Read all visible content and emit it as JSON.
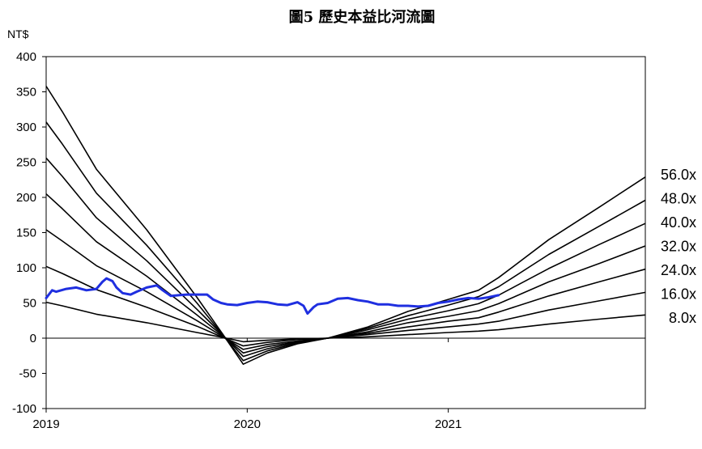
{
  "chart_data": {
    "type": "line",
    "title": "圖5 歷史本益比河流圖",
    "ylabel": "NT$",
    "xlabel": "",
    "ylim": [
      -100,
      400
    ],
    "xlim": [
      2019.0,
      2021.98
    ],
    "y_ticks": [
      -100,
      -50,
      0,
      50,
      100,
      150,
      200,
      250,
      300,
      350,
      400
    ],
    "x_ticks": [
      {
        "label": "2019",
        "value": 2019.0
      },
      {
        "label": "2020",
        "value": 2020.0
      },
      {
        "label": "2021",
        "value": 2021.0
      }
    ],
    "grid": false,
    "legend": "none",
    "colors": {
      "price": "#1f2fe0",
      "bands": "#000000",
      "zero_line": "#000000"
    },
    "series": [
      {
        "name": "56.0x",
        "kind": "pe_band",
        "x": [
          2019.0,
          2019.08,
          2019.25,
          2019.5,
          2019.75,
          2019.88,
          2019.98,
          2020.1,
          2020.25,
          2020.4,
          2020.6,
          2020.8,
          2021.0,
          2021.15,
          2021.25,
          2021.5,
          2021.75,
          2021.98
        ],
        "y": [
          358,
          322,
          240,
          154,
          58,
          5,
          -37,
          -21,
          -8,
          0,
          16,
          38,
          55,
          68,
          86,
          140,
          186,
          229
        ]
      },
      {
        "name": "48.0x",
        "kind": "pe_band",
        "x": [
          2019.0,
          2019.08,
          2019.25,
          2019.5,
          2019.75,
          2019.88,
          2019.98,
          2020.1,
          2020.25,
          2020.4,
          2020.6,
          2020.8,
          2021.0,
          2021.15,
          2021.25,
          2021.5,
          2021.75,
          2021.98
        ],
        "y": [
          307,
          276,
          206,
          132,
          50,
          4,
          -32,
          -18,
          -7,
          0,
          14,
          32,
          47,
          59,
          73,
          119,
          159,
          196
        ]
      },
      {
        "name": "40.0x",
        "kind": "pe_band",
        "x": [
          2019.0,
          2019.08,
          2019.25,
          2019.5,
          2019.75,
          2019.88,
          2019.98,
          2020.1,
          2020.25,
          2020.4,
          2020.6,
          2020.8,
          2021.0,
          2021.15,
          2021.25,
          2021.5,
          2021.75,
          2021.98
        ],
        "y": [
          256,
          230,
          171,
          110,
          41,
          4,
          -26,
          -15,
          -6,
          0,
          12,
          27,
          39,
          49,
          61,
          99,
          133,
          163
        ]
      },
      {
        "name": "32.0x",
        "kind": "pe_band",
        "x": [
          2019.0,
          2019.08,
          2019.25,
          2019.5,
          2019.75,
          2019.88,
          2019.98,
          2020.1,
          2020.25,
          2020.4,
          2020.6,
          2020.8,
          2021.0,
          2021.15,
          2021.25,
          2021.5,
          2021.75,
          2021.98
        ],
        "y": [
          205,
          184,
          137,
          88,
          33,
          3,
          -21,
          -12,
          -5,
          0,
          9,
          22,
          31,
          39,
          49,
          80,
          106,
          131
        ]
      },
      {
        "name": "24.0x",
        "kind": "pe_band",
        "x": [
          2019.0,
          2019.08,
          2019.25,
          2019.5,
          2019.75,
          2019.88,
          2019.98,
          2020.1,
          2020.25,
          2020.4,
          2020.6,
          2020.8,
          2021.0,
          2021.15,
          2021.25,
          2021.5,
          2021.75,
          2021.98
        ],
        "y": [
          154,
          138,
          103,
          66,
          25,
          2,
          -16,
          -9,
          -4,
          0,
          7,
          16,
          24,
          29,
          37,
          60,
          80,
          98
        ]
      },
      {
        "name": "16.0x",
        "kind": "pe_band",
        "x": [
          2019.0,
          2019.08,
          2019.25,
          2019.5,
          2019.75,
          2019.88,
          2019.98,
          2020.1,
          2020.25,
          2020.4,
          2020.6,
          2020.8,
          2021.0,
          2021.15,
          2021.25,
          2021.5,
          2021.75,
          2021.98
        ],
        "y": [
          102,
          92,
          69,
          44,
          17,
          1,
          -11,
          -6,
          -2,
          0,
          5,
          11,
          16,
          20,
          24,
          40,
          53,
          65
        ]
      },
      {
        "name": "8.0x",
        "kind": "pe_band",
        "x": [
          2019.0,
          2019.08,
          2019.25,
          2019.5,
          2019.75,
          2019.88,
          2019.98,
          2020.1,
          2020.25,
          2020.4,
          2020.6,
          2020.8,
          2021.0,
          2021.15,
          2021.25,
          2021.5,
          2021.75,
          2021.98
        ],
        "y": [
          51,
          46,
          34,
          22,
          8,
          1,
          -5,
          -3,
          -1,
          0,
          2,
          5,
          8,
          10,
          12,
          20,
          27,
          33
        ]
      },
      {
        "kind": "price",
        "x": [
          2019.0,
          2019.03,
          2019.05,
          2019.1,
          2019.15,
          2019.2,
          2019.25,
          2019.28,
          2019.3,
          2019.33,
          2019.35,
          2019.38,
          2019.42,
          2019.45,
          2019.5,
          2019.55,
          2019.58,
          2019.62,
          2019.66,
          2019.7,
          2019.75,
          2019.8,
          2019.83,
          2019.87,
          2019.9,
          2019.95,
          2020.0,
          2020.05,
          2020.1,
          2020.15,
          2020.2,
          2020.25,
          2020.28,
          2020.3,
          2020.33,
          2020.35,
          2020.4,
          2020.45,
          2020.5,
          2020.55,
          2020.6,
          2020.65,
          2020.7,
          2020.75,
          2020.8,
          2020.85,
          2020.9,
          2020.95,
          2021.0,
          2021.05,
          2021.1,
          2021.15,
          2021.2,
          2021.25
        ],
        "y": [
          57,
          68,
          66,
          70,
          72,
          68,
          70,
          80,
          85,
          81,
          72,
          64,
          62,
          66,
          72,
          75,
          68,
          60,
          61,
          62,
          62,
          62,
          55,
          50,
          48,
          47,
          50,
          52,
          51,
          48,
          47,
          51,
          46,
          35,
          44,
          48,
          50,
          56,
          57,
          54,
          52,
          48,
          48,
          46,
          46,
          45,
          46,
          50,
          52,
          55,
          57,
          56,
          58,
          61
        ]
      }
    ]
  }
}
